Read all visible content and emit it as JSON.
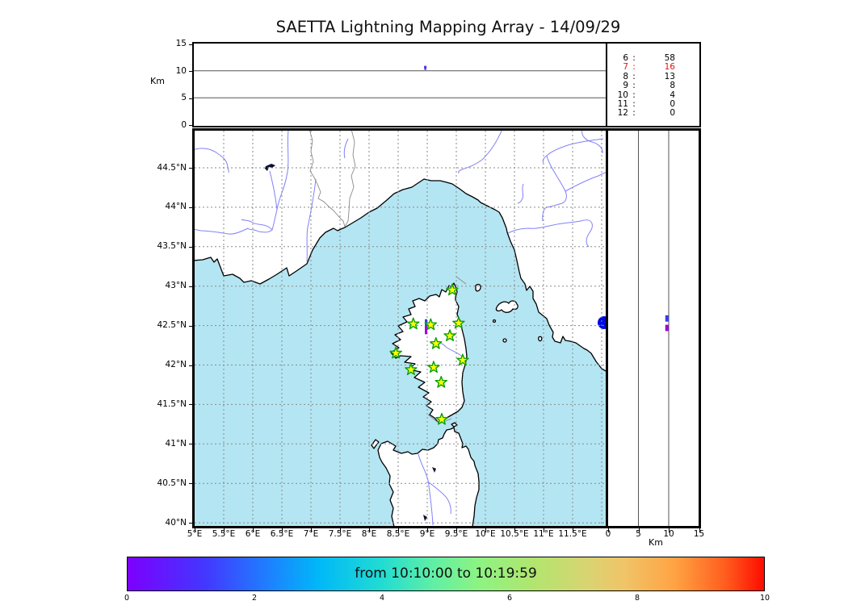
{
  "title": "SAETTA Lightning Mapping Array - 14/09/29",
  "top_panel": {
    "ylabel": "Km",
    "yticks": [
      "15",
      "10",
      "5",
      "0"
    ]
  },
  "counts_panel": {
    "rows": [
      {
        "alt": "6",
        "sep": ":",
        "count": "58",
        "highlight": false
      },
      {
        "alt": "7",
        "sep": ":",
        "count": "16",
        "highlight": true
      },
      {
        "alt": "8",
        "sep": ":",
        "count": "13",
        "highlight": false
      },
      {
        "alt": "9",
        "sep": ":",
        "count": "8",
        "highlight": false
      },
      {
        "alt": "10",
        "sep": ":",
        "count": "4",
        "highlight": false
      },
      {
        "alt": "11",
        "sep": ":",
        "count": "0",
        "highlight": false
      },
      {
        "alt": "12",
        "sep": ":",
        "count": "0",
        "highlight": false
      }
    ]
  },
  "map_panel": {
    "lat_ticks": [
      "44.5°N",
      "44°N",
      "43.5°N",
      "43°N",
      "42.5°N",
      "42°N",
      "41.5°N",
      "41°N",
      "40.5°N",
      "40°N"
    ],
    "lon_ticks": [
      "5°E",
      "5.5°E",
      "6°E",
      "6.5°E",
      "7°E",
      "7.5°E",
      "8°E",
      "8.5°E",
      "9°E",
      "9.5°E",
      "10°E",
      "10.5°E",
      "11°E",
      "11.5°E"
    ]
  },
  "right_panel": {
    "xticks": [
      "0",
      "5",
      "10",
      "15"
    ],
    "xlabel": "Km"
  },
  "colorbar": {
    "label": "from 10:10:00 to 10:19:59",
    "ticks": [
      "0",
      "2",
      "4",
      "6",
      "8",
      "10"
    ]
  },
  "colors": {
    "sea": "#b4e5f2",
    "land": "#ffffff",
    "grid": "#8a8a8a",
    "coast": "#000000",
    "river": "#8181f7",
    "border": "#8a8a8a",
    "lake_dark": "#0a1230",
    "lake_blue": "#0008e0",
    "star_fill": "#ffff00",
    "star_stroke": "#0aa00a",
    "event_blue": "#3a3af0",
    "event_purple": "#a000d8",
    "highlight_red": "#e81010"
  },
  "chart_data": [
    {
      "type": "scatter",
      "name": "altitude-vs-time-panel",
      "ylabel": "Km",
      "ylim": [
        0,
        15
      ],
      "yticks": [
        15,
        10,
        5,
        0
      ],
      "grid": true,
      "points": [
        {
          "x_frac": 0.562,
          "alt_km": 10.6
        }
      ]
    },
    {
      "type": "table",
      "name": "source-counts-by-altitude-km",
      "rows": [
        [
          "6",
          58
        ],
        [
          "7",
          16
        ],
        [
          "8",
          13
        ],
        [
          "9",
          8
        ],
        [
          "10",
          4
        ],
        [
          "11",
          0
        ],
        [
          "12",
          0
        ]
      ],
      "highlighted_row": "7"
    },
    {
      "type": "scatter",
      "name": "map-panel-stations-and-sources",
      "xlabel_units": "deg E",
      "ylabel_units": "deg N",
      "xlim": [
        5,
        12.07
      ],
      "ylim": [
        40,
        44.97
      ],
      "grid": true,
      "stations_marker": "star",
      "stations": [
        {
          "lon": 9.43,
          "lat": 42.95
        },
        {
          "lon": 8.76,
          "lat": 42.52
        },
        {
          "lon": 9.06,
          "lat": 42.51
        },
        {
          "lon": 9.54,
          "lat": 42.53
        },
        {
          "lon": 9.39,
          "lat": 42.37
        },
        {
          "lon": 9.15,
          "lat": 42.27
        },
        {
          "lon": 8.46,
          "lat": 42.15
        },
        {
          "lon": 9.61,
          "lat": 42.06
        },
        {
          "lon": 9.11,
          "lat": 41.97
        },
        {
          "lon": 8.72,
          "lat": 41.94
        },
        {
          "lon": 9.24,
          "lat": 41.78
        },
        {
          "lon": 9.25,
          "lat": 41.31
        }
      ],
      "events": {
        "lon": 8.98,
        "segments": [
          {
            "lat_from": 42.58,
            "lat_to": 42.49,
            "color": "event_blue"
          },
          {
            "lat_from": 42.49,
            "lat_to": 42.39,
            "color": "event_purple"
          }
        ]
      }
    },
    {
      "type": "scatter",
      "name": "altitude-vs-latitude-panel",
      "xlabel": "Km",
      "xlim": [
        0,
        15
      ],
      "xticks": [
        0,
        5,
        10,
        15
      ],
      "grid": true,
      "events": {
        "alt_km": 9.7,
        "segments": [
          {
            "lat_from": 42.63,
            "lat_to": 42.55,
            "color": "event_blue"
          },
          {
            "lat_from": 42.51,
            "lat_to": 42.43,
            "color": "event_purple"
          }
        ]
      }
    },
    {
      "type": "area",
      "name": "time-colorbar",
      "label": "from 10:10:00 to 10:19:59",
      "range": [
        0,
        10
      ],
      "ticks": [
        0,
        2,
        4,
        6,
        8,
        10
      ],
      "colormap": "rainbow"
    }
  ]
}
